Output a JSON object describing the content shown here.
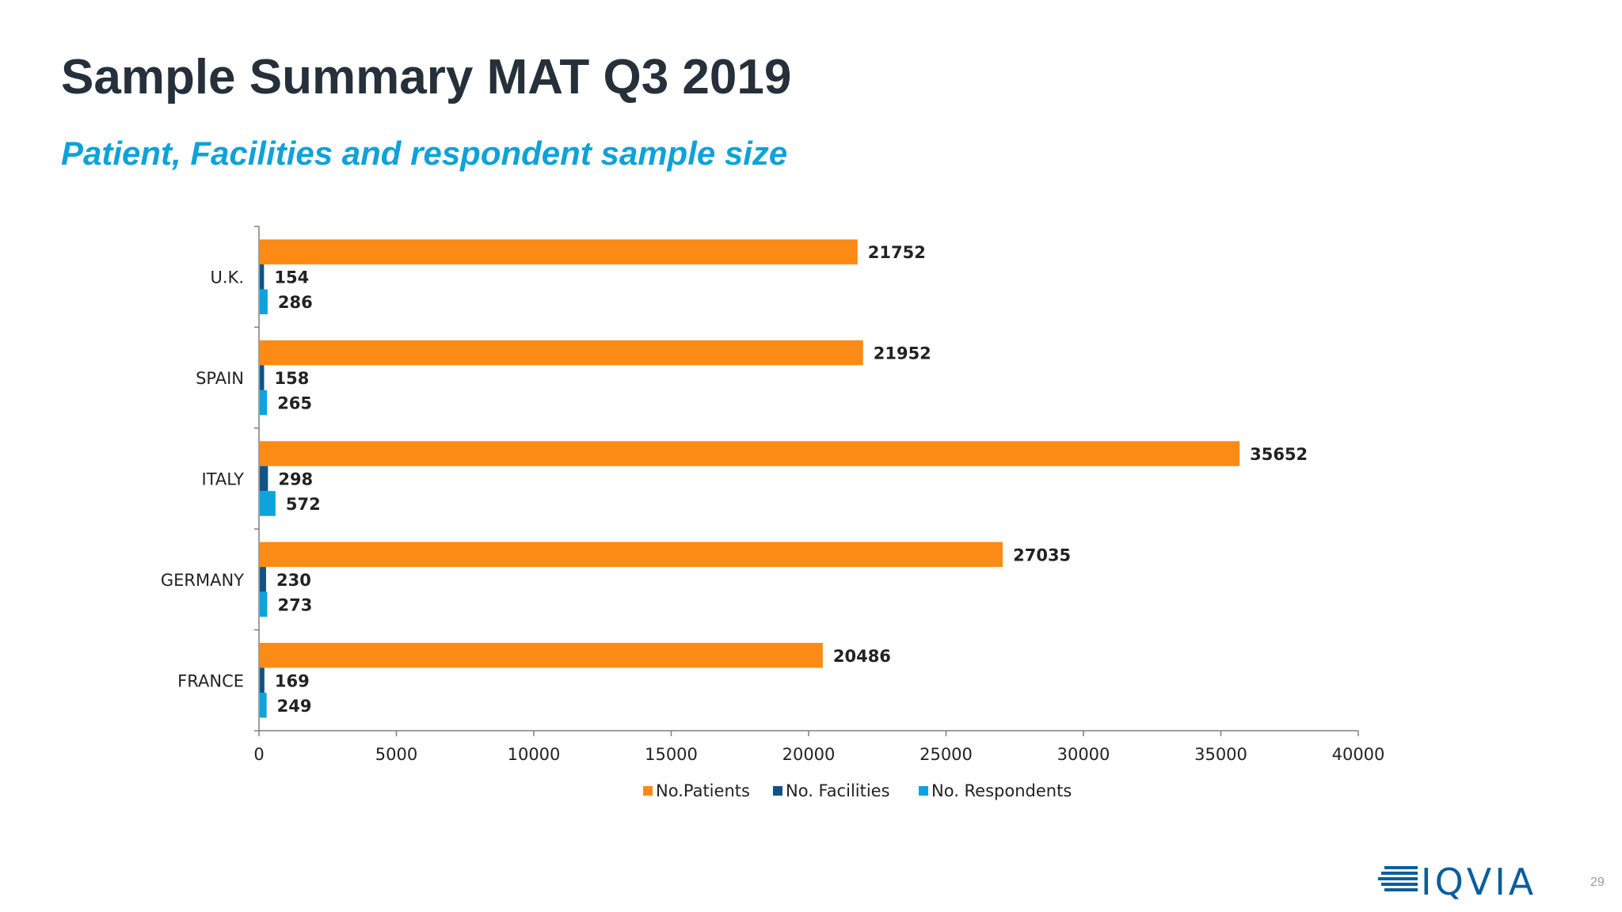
{
  "slide": {
    "title": "Sample Summary MAT Q3 2019",
    "subtitle": "Patient, Facilities and respondent sample size",
    "page_number": "29",
    "logo_text": "IQVIA"
  },
  "chart_data": {
    "type": "bar",
    "orientation": "horizontal",
    "categories": [
      "U.K.",
      "SPAIN",
      "ITALY",
      "GERMANY",
      "FRANCE"
    ],
    "series": [
      {
        "name": "No.Patients",
        "color": "#fb8b14",
        "values": [
          21752,
          21952,
          35652,
          27035,
          20486
        ]
      },
      {
        "name": "No. Facilities",
        "color": "#0f5487",
        "values": [
          154,
          158,
          298,
          230,
          169
        ]
      },
      {
        "name": "No. Respondents",
        "color": "#0fa3dc",
        "values": [
          286,
          265,
          572,
          273,
          249
        ]
      }
    ],
    "xlim": [
      0,
      40000
    ],
    "xticks": [
      0,
      5000,
      10000,
      15000,
      20000,
      25000,
      30000,
      35000,
      40000
    ],
    "data_labels": true,
    "legend_position": "bottom",
    "grid": false
  }
}
